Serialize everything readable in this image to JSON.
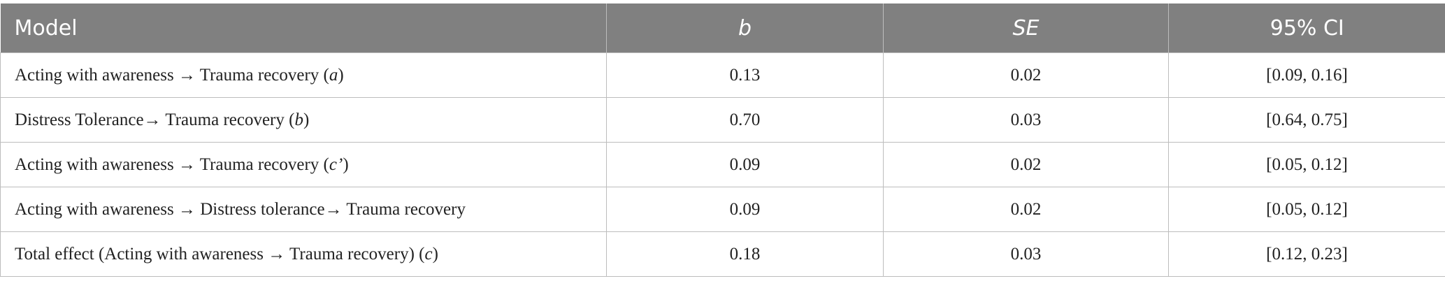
{
  "table": {
    "header": [
      "Model",
      "b",
      "SE",
      "95% CI"
    ],
    "rows": [
      [
        [
          "Acting with awareness → Trauma recovery (",
          "a",
          ")"
        ],
        "0.13",
        "0.02",
        "[0.09, 0.16]"
      ],
      [
        [
          "Distress Tolerance→ Trauma recovery (",
          "b",
          ")"
        ],
        "0.70",
        "0.03",
        "[0.64, 0.75]"
      ],
      [
        [
          "Acting with awareness → Trauma recovery (",
          "c’",
          ")"
        ],
        "0.09",
        "0.02",
        "[0.05, 0.12]"
      ],
      [
        [
          "Acting with awareness → Distress tolerance→ Trauma recovery"
        ],
        "0.09",
        "0.02",
        "[0.05, 0.12]"
      ],
      [
        [
          "Total effect (Acting with awareness → Trauma recovery) (",
          "c",
          ")"
        ],
        "0.18",
        "0.03",
        "[0.12, 0.23]"
      ]
    ]
  }
}
